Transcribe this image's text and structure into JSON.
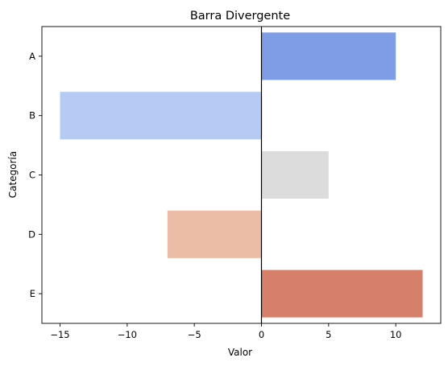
{
  "chart_data": {
    "type": "bar",
    "orientation": "horizontal",
    "title": "Barra Divergente",
    "xlabel": "Valor",
    "ylabel": "Categoría",
    "categories": [
      "A",
      "B",
      "C",
      "D",
      "E"
    ],
    "values": [
      10,
      -15,
      5,
      -7,
      12
    ],
    "colors": [
      "#7f9de6",
      "#b5cbf4",
      "#dcdcdc",
      "#ecbda6",
      "#d67f6b"
    ],
    "xlim": [
      -16.35,
      13.35
    ],
    "xticks": [
      -15,
      -10,
      -5,
      0,
      5,
      10
    ],
    "xtick_labels": [
      "−15",
      "−10",
      "−5",
      "0",
      "5",
      "10"
    ],
    "zero_line": 0,
    "grid": false,
    "legend": "none"
  }
}
